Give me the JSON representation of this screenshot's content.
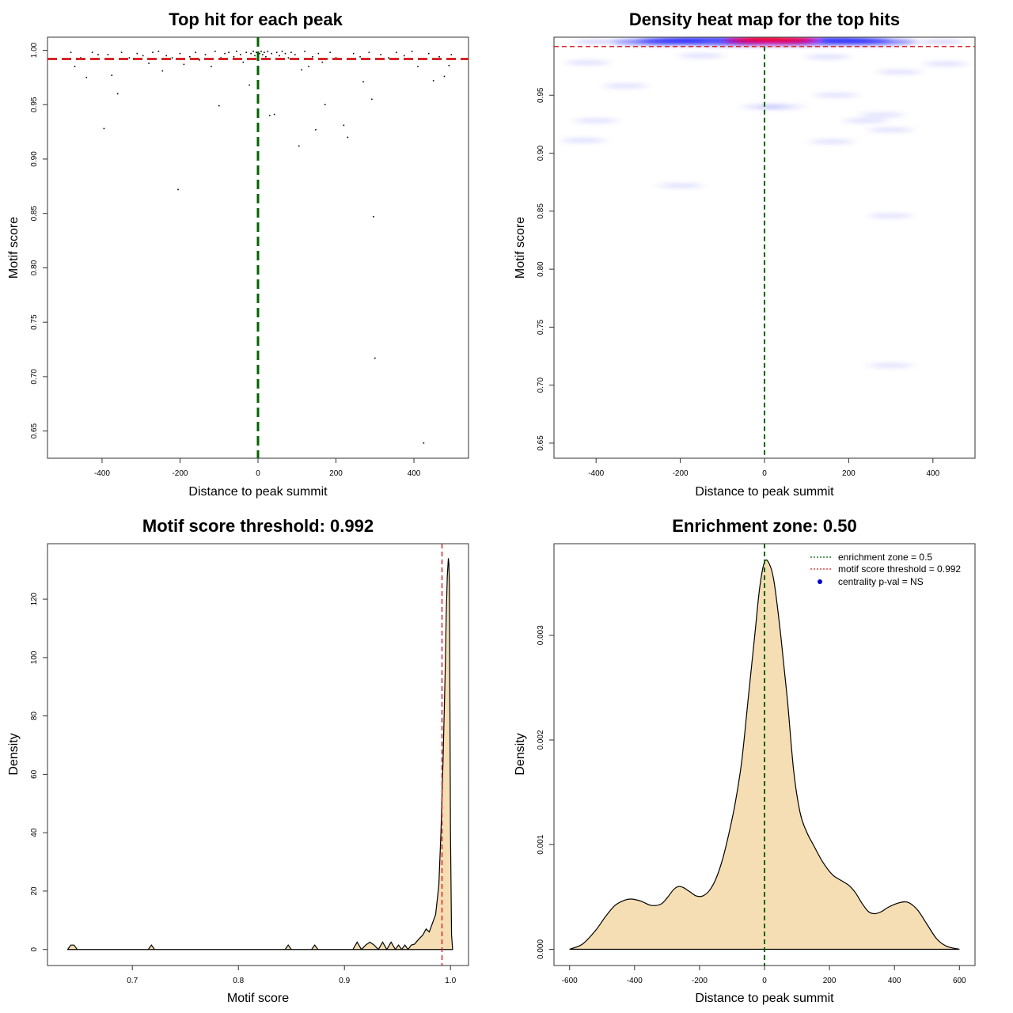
{
  "colors": {
    "threshold_line": "#d62728",
    "zone_line": "#006400",
    "fill": "#f5deb3",
    "heat_low": "#e8ebff",
    "heat_mid": "#0000ff",
    "heat_high": "#ff0000",
    "legend_point": "#0000cd"
  },
  "chart_data": [
    {
      "id": "top-hits",
      "type": "scatter",
      "title": "Top hit for each peak",
      "xlabel": "Distance to peak summit",
      "ylabel": "Motif score",
      "xlim": [
        -540,
        540
      ],
      "ylim": [
        0.625,
        1.012
      ],
      "xticks": [
        -400,
        -200,
        0,
        200,
        400
      ],
      "yticks": [
        0.65,
        0.7,
        0.75,
        0.8,
        0.85,
        0.9,
        0.95,
        1.0
      ],
      "ytick_labels": [
        "0.65",
        "0.70",
        "0.75",
        "0.80",
        "0.85",
        "0.90",
        "0.95",
        "1.00"
      ],
      "threshold": 0.992,
      "zone_center": 0,
      "grid": false,
      "points": [
        {
          "x": -480,
          "y": 0.998
        },
        {
          "x": -470,
          "y": 0.985
        },
        {
          "x": -455,
          "y": 0.993
        },
        {
          "x": -440,
          "y": 0.975
        },
        {
          "x": -425,
          "y": 0.998
        },
        {
          "x": -410,
          "y": 0.996
        },
        {
          "x": -395,
          "y": 0.928
        },
        {
          "x": -385,
          "y": 0.996
        },
        {
          "x": -375,
          "y": 0.977
        },
        {
          "x": -360,
          "y": 0.96
        },
        {
          "x": -350,
          "y": 0.998
        },
        {
          "x": -330,
          "y": 0.993
        },
        {
          "x": -310,
          "y": 0.997
        },
        {
          "x": -295,
          "y": 0.995
        },
        {
          "x": -280,
          "y": 0.988
        },
        {
          "x": -270,
          "y": 0.998
        },
        {
          "x": -255,
          "y": 0.999
        },
        {
          "x": -245,
          "y": 0.981
        },
        {
          "x": -235,
          "y": 0.995
        },
        {
          "x": -220,
          "y": 0.993
        },
        {
          "x": -205,
          "y": 0.872
        },
        {
          "x": -200,
          "y": 0.997
        },
        {
          "x": -190,
          "y": 0.987
        },
        {
          "x": -175,
          "y": 0.994
        },
        {
          "x": -160,
          "y": 0.998
        },
        {
          "x": -150,
          "y": 0.991
        },
        {
          "x": -135,
          "y": 0.996
        },
        {
          "x": -120,
          "y": 0.985
        },
        {
          "x": -110,
          "y": 0.999
        },
        {
          "x": -100,
          "y": 0.949
        },
        {
          "x": -95,
          "y": 0.993
        },
        {
          "x": -85,
          "y": 0.997
        },
        {
          "x": -75,
          "y": 0.998
        },
        {
          "x": -62,
          "y": 0.994
        },
        {
          "x": -55,
          "y": 0.999
        },
        {
          "x": -45,
          "y": 0.996
        },
        {
          "x": -38,
          "y": 0.989
        },
        {
          "x": -30,
          "y": 0.998
        },
        {
          "x": -22,
          "y": 0.968
        },
        {
          "x": -18,
          "y": 0.997
        },
        {
          "x": -12,
          "y": 0.999
        },
        {
          "x": -8,
          "y": 0.995
        },
        {
          "x": -4,
          "y": 0.998
        },
        {
          "x": 4,
          "y": 0.997
        },
        {
          "x": 8,
          "y": 0.999
        },
        {
          "x": 12,
          "y": 0.996
        },
        {
          "x": 16,
          "y": 0.998
        },
        {
          "x": 20,
          "y": 0.994
        },
        {
          "x": 25,
          "y": 0.999
        },
        {
          "x": 30,
          "y": 0.94
        },
        {
          "x": 35,
          "y": 0.997
        },
        {
          "x": 42,
          "y": 0.941
        },
        {
          "x": 48,
          "y": 0.998
        },
        {
          "x": 55,
          "y": 0.995
        },
        {
          "x": 62,
          "y": 0.999
        },
        {
          "x": 70,
          "y": 0.997
        },
        {
          "x": 78,
          "y": 0.993
        },
        {
          "x": 85,
          "y": 0.998
        },
        {
          "x": 95,
          "y": 0.996
        },
        {
          "x": 105,
          "y": 0.912
        },
        {
          "x": 112,
          "y": 0.982
        },
        {
          "x": 120,
          "y": 0.999
        },
        {
          "x": 130,
          "y": 0.985
        },
        {
          "x": 140,
          "y": 0.994
        },
        {
          "x": 148,
          "y": 0.927
        },
        {
          "x": 155,
          "y": 0.997
        },
        {
          "x": 165,
          "y": 0.989
        },
        {
          "x": 172,
          "y": 0.95
        },
        {
          "x": 185,
          "y": 0.998
        },
        {
          "x": 200,
          "y": 0.993
        },
        {
          "x": 220,
          "y": 0.931
        },
        {
          "x": 230,
          "y": 0.92
        },
        {
          "x": 245,
          "y": 0.997
        },
        {
          "x": 262,
          "y": 0.994
        },
        {
          "x": 270,
          "y": 0.971
        },
        {
          "x": 285,
          "y": 0.998
        },
        {
          "x": 292,
          "y": 0.955
        },
        {
          "x": 296,
          "y": 0.847
        },
        {
          "x": 300,
          "y": 0.717
        },
        {
          "x": 315,
          "y": 0.996
        },
        {
          "x": 335,
          "y": 0.993
        },
        {
          "x": 355,
          "y": 0.998
        },
        {
          "x": 375,
          "y": 0.995
        },
        {
          "x": 395,
          "y": 0.999
        },
        {
          "x": 410,
          "y": 0.985
        },
        {
          "x": 425,
          "y": 0.639
        },
        {
          "x": 438,
          "y": 0.997
        },
        {
          "x": 450,
          "y": 0.972
        },
        {
          "x": 465,
          "y": 0.994
        },
        {
          "x": 478,
          "y": 0.976
        },
        {
          "x": 490,
          "y": 0.986
        },
        {
          "x": 496,
          "y": 0.996
        }
      ]
    },
    {
      "id": "density-heatmap",
      "type": "heatmap",
      "title": "Density heat map for the top hits",
      "xlabel": "Distance to peak summit",
      "ylabel": "Motif score",
      "xlim": [
        -500,
        500
      ],
      "ylim": [
        0.637,
        1.0
      ],
      "xticks": [
        -400,
        -200,
        0,
        200,
        400
      ],
      "yticks": [
        0.65,
        0.7,
        0.75,
        0.8,
        0.85,
        0.9,
        0.95
      ],
      "ytick_labels": [
        "0.65",
        "0.70",
        "0.75",
        "0.80",
        "0.85",
        "0.90",
        "0.95"
      ],
      "threshold": 0.992,
      "zone_center": 0,
      "blobs": [
        {
          "x": 0,
          "y": 0.998,
          "intensity": 1.0
        },
        {
          "x": -30,
          "y": 0.997,
          "intensity": 0.85
        },
        {
          "x": 60,
          "y": 0.997,
          "intensity": 0.8
        },
        {
          "x": -250,
          "y": 0.996,
          "intensity": 0.35
        },
        {
          "x": 250,
          "y": 0.996,
          "intensity": 0.35
        },
        {
          "x": -400,
          "y": 0.996,
          "intensity": 0.25
        },
        {
          "x": 420,
          "y": 0.996,
          "intensity": 0.25
        },
        {
          "x": -150,
          "y": 0.984,
          "intensity": 0.12
        },
        {
          "x": 150,
          "y": 0.983,
          "intensity": 0.12
        },
        {
          "x": -420,
          "y": 0.978,
          "intensity": 0.1
        },
        {
          "x": 430,
          "y": 0.977,
          "intensity": 0.1
        },
        {
          "x": 320,
          "y": 0.97,
          "intensity": 0.1
        },
        {
          "x": -330,
          "y": 0.958,
          "intensity": 0.1
        },
        {
          "x": 0,
          "y": 0.94,
          "intensity": 0.15
        },
        {
          "x": 40,
          "y": 0.94,
          "intensity": 0.1
        },
        {
          "x": 170,
          "y": 0.95,
          "intensity": 0.08
        },
        {
          "x": -400,
          "y": 0.928,
          "intensity": 0.1
        },
        {
          "x": 240,
          "y": 0.928,
          "intensity": 0.1
        },
        {
          "x": 280,
          "y": 0.933,
          "intensity": 0.08
        },
        {
          "x": 300,
          "y": 0.92,
          "intensity": 0.08
        },
        {
          "x": -430,
          "y": 0.911,
          "intensity": 0.1
        },
        {
          "x": 160,
          "y": 0.91,
          "intensity": 0.08
        },
        {
          "x": -200,
          "y": 0.872,
          "intensity": 0.1
        },
        {
          "x": 300,
          "y": 0.846,
          "intensity": 0.08
        },
        {
          "x": 300,
          "y": 0.717,
          "intensity": 0.08
        }
      ]
    },
    {
      "id": "score-density",
      "type": "area",
      "title": "Motif score threshold: 0.992",
      "xlabel": "Motif score",
      "ylabel": "Density",
      "xlim": [
        0.62,
        1.017
      ],
      "ylim": [
        -5.5,
        139
      ],
      "xticks": [
        0.7,
        0.8,
        0.9,
        1.0
      ],
      "xtick_labels": [
        "0.7",
        "0.8",
        "0.9",
        "1.0"
      ],
      "yticks": [
        0,
        20,
        40,
        60,
        80,
        100,
        120
      ],
      "threshold": 0.992,
      "x": [
        0.639,
        0.642,
        0.645,
        0.648,
        0.715,
        0.718,
        0.721,
        0.844,
        0.847,
        0.85,
        0.869,
        0.872,
        0.875,
        0.908,
        0.912,
        0.916,
        0.92,
        0.924,
        0.928,
        0.932,
        0.936,
        0.94,
        0.944,
        0.948,
        0.951,
        0.954,
        0.957,
        0.96,
        0.963,
        0.966,
        0.97,
        0.974,
        0.977,
        0.98,
        0.983,
        0.986,
        0.989,
        0.991,
        0.993,
        0.995,
        0.996,
        0.997,
        0.998,
        0.9985,
        0.999,
        1.0,
        1.001,
        1.002
      ],
      "y": [
        0,
        1.5,
        1.5,
        0,
        0,
        1.5,
        0,
        0,
        1.5,
        0,
        0,
        1.5,
        0,
        0,
        2.5,
        0,
        1.5,
        2.5,
        1.5,
        0,
        2.5,
        0,
        2.5,
        0,
        1.5,
        0,
        1.5,
        0,
        1.5,
        1.8,
        3.5,
        5,
        7,
        6,
        9,
        12,
        22,
        40,
        65,
        95,
        115,
        128,
        134,
        132,
        125,
        40,
        5,
        0
      ]
    },
    {
      "id": "distance-density",
      "type": "area",
      "title": "Enrichment zone: 0.50",
      "xlabel": "Distance to peak summit",
      "ylabel": "Density",
      "xlim": [
        -648,
        648
      ],
      "ylim": [
        -0.000155,
        0.003875
      ],
      "xticks": [
        -600,
        -400,
        -200,
        0,
        200,
        400,
        600
      ],
      "yticks": [
        0,
        0.001,
        0.002,
        0.003
      ],
      "ytick_labels": [
        "0.000",
        "0.001",
        "0.002",
        "0.003"
      ],
      "zone_center": 0,
      "x": [
        -600,
        -560,
        -520,
        -490,
        -460,
        -430,
        -410,
        -380,
        -350,
        -320,
        -300,
        -280,
        -265,
        -250,
        -230,
        -210,
        -190,
        -170,
        -150,
        -130,
        -110,
        -90,
        -70,
        -50,
        -30,
        -15,
        0,
        15,
        30,
        50,
        70,
        90,
        110,
        130,
        150,
        180,
        210,
        240,
        260,
        280,
        300,
        320,
        340,
        360,
        380,
        410,
        440,
        470,
        500,
        530,
        560,
        600
      ],
      "y": [
        0,
        5e-05,
        0.00018,
        0.00031,
        0.00042,
        0.00047,
        0.00048,
        0.00046,
        0.00042,
        0.00043,
        0.00049,
        0.00057,
        0.0006,
        0.00059,
        0.00055,
        0.00051,
        0.00051,
        0.00056,
        0.00067,
        0.00085,
        0.0011,
        0.0014,
        0.0018,
        0.0024,
        0.003,
        0.00345,
        0.0037,
        0.00368,
        0.0035,
        0.003,
        0.0024,
        0.0017,
        0.0013,
        0.00112,
        0.001,
        0.00083,
        0.00071,
        0.00065,
        0.00061,
        0.00054,
        0.00044,
        0.00036,
        0.00034,
        0.00036,
        0.0004,
        0.00044,
        0.00045,
        0.00038,
        0.00024,
        0.0001,
        3e-05,
        0
      ]
    }
  ],
  "legend": {
    "items": [
      {
        "label": "enrichment zone = 0.5",
        "kind": "dotted-line",
        "color": "#006400"
      },
      {
        "label": "motif score threshold = 0.992",
        "kind": "dotted-line",
        "color": "#d62728"
      },
      {
        "label": "centrality p-val = NS",
        "kind": "point",
        "color": "#0000cd"
      }
    ]
  }
}
